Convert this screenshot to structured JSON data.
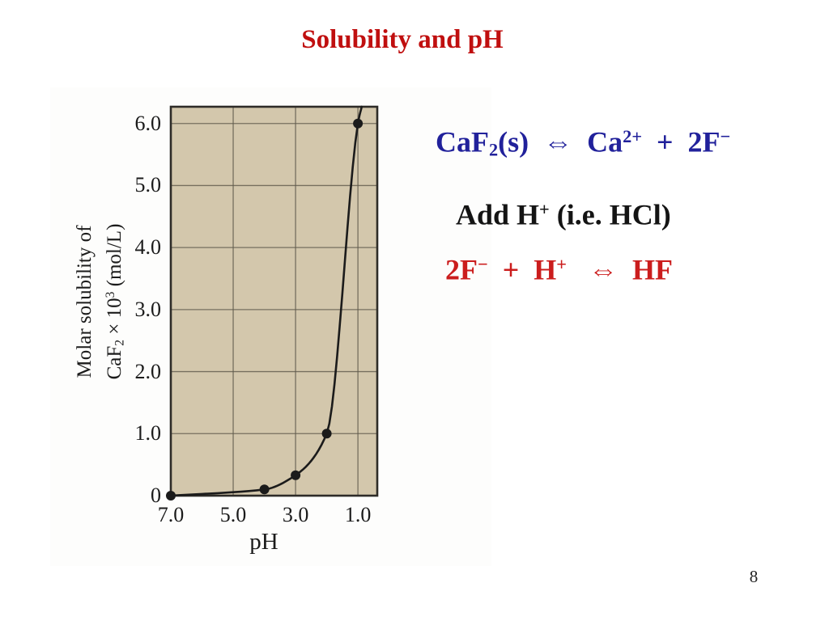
{
  "slide": {
    "title": "Solubility and pH",
    "page_number": "8"
  },
  "colors": {
    "title-red": "#c00f0f",
    "equation-blue": "#21219b",
    "equation-red": "#cb1d1d",
    "text-black": "#141414",
    "plot-background": "#d3c7ac",
    "grid-line": "#5f5a4c",
    "plot-frame": "#2e2c28",
    "curve": "#1b1b1b"
  },
  "equations": {
    "dissolution": {
      "segments": [
        {
          "t": "CaF"
        },
        {
          "t": "2",
          "sub": true
        },
        {
          "t": "(s)"
        },
        {
          "t": "  ⇔  "
        },
        {
          "t": "Ca"
        },
        {
          "t": "2+",
          "sup": true
        },
        {
          "t": "  +  2F"
        },
        {
          "t": "−",
          "sup": true
        }
      ]
    },
    "add_acid": {
      "segments": [
        {
          "t": "Add H"
        },
        {
          "t": "+",
          "sup": true
        },
        {
          "t": " (i.e. HCl)"
        }
      ]
    },
    "hf_formation": {
      "segments": [
        {
          "t": "2F"
        },
        {
          "t": "−",
          "sup": true
        },
        {
          "t": "  +  H"
        },
        {
          "t": "+",
          "sup": true
        },
        {
          "t": "   ⇔  HF"
        }
      ]
    }
  },
  "chart_data": {
    "type": "line",
    "title": "",
    "xlabel": "pH",
    "ylabel_line1": "Molar solubility of",
    "ylabel_line2_segments": [
      {
        "t": "CaF"
      },
      {
        "t": "2",
        "sub": true
      },
      {
        "t": " × 10"
      },
      {
        "t": "3",
        "sup": true
      },
      {
        "t": " (mol/L)"
      }
    ],
    "x_axis": {
      "reversed": true,
      "left_value": 7.0,
      "right_edge_value": 0.38,
      "ticks": [
        {
          "label": "7.0",
          "value": 7.0
        },
        {
          "label": "5.0",
          "value": 5.0
        },
        {
          "label": "3.0",
          "value": 3.0
        },
        {
          "label": "1.0",
          "value": 1.0
        }
      ]
    },
    "y_axis": {
      "bottom_value": 0,
      "top_edge_value": 6.27,
      "ticks": [
        {
          "label": "0",
          "value": 0
        },
        {
          "label": "1.0",
          "value": 1.0
        },
        {
          "label": "2.0",
          "value": 2.0
        },
        {
          "label": "3.0",
          "value": 3.0
        },
        {
          "label": "4.0",
          "value": 4.0
        },
        {
          "label": "5.0",
          "value": 5.0
        },
        {
          "label": "6.0",
          "value": 6.0
        }
      ]
    },
    "grid": true,
    "legend": "none",
    "series": [
      {
        "name": "Molar solubility of CaF2 vs pH",
        "marker": "filled-circle",
        "points": [
          {
            "x": 7.0,
            "y": 0.0
          },
          {
            "x": 4.0,
            "y": 0.1
          },
          {
            "x": 3.0,
            "y": 0.33
          },
          {
            "x": 2.0,
            "y": 1.0
          },
          {
            "x": 1.0,
            "y": 6.0
          }
        ],
        "curve_continues_to": {
          "x": 0.88,
          "y": 6.27
        }
      }
    ]
  }
}
